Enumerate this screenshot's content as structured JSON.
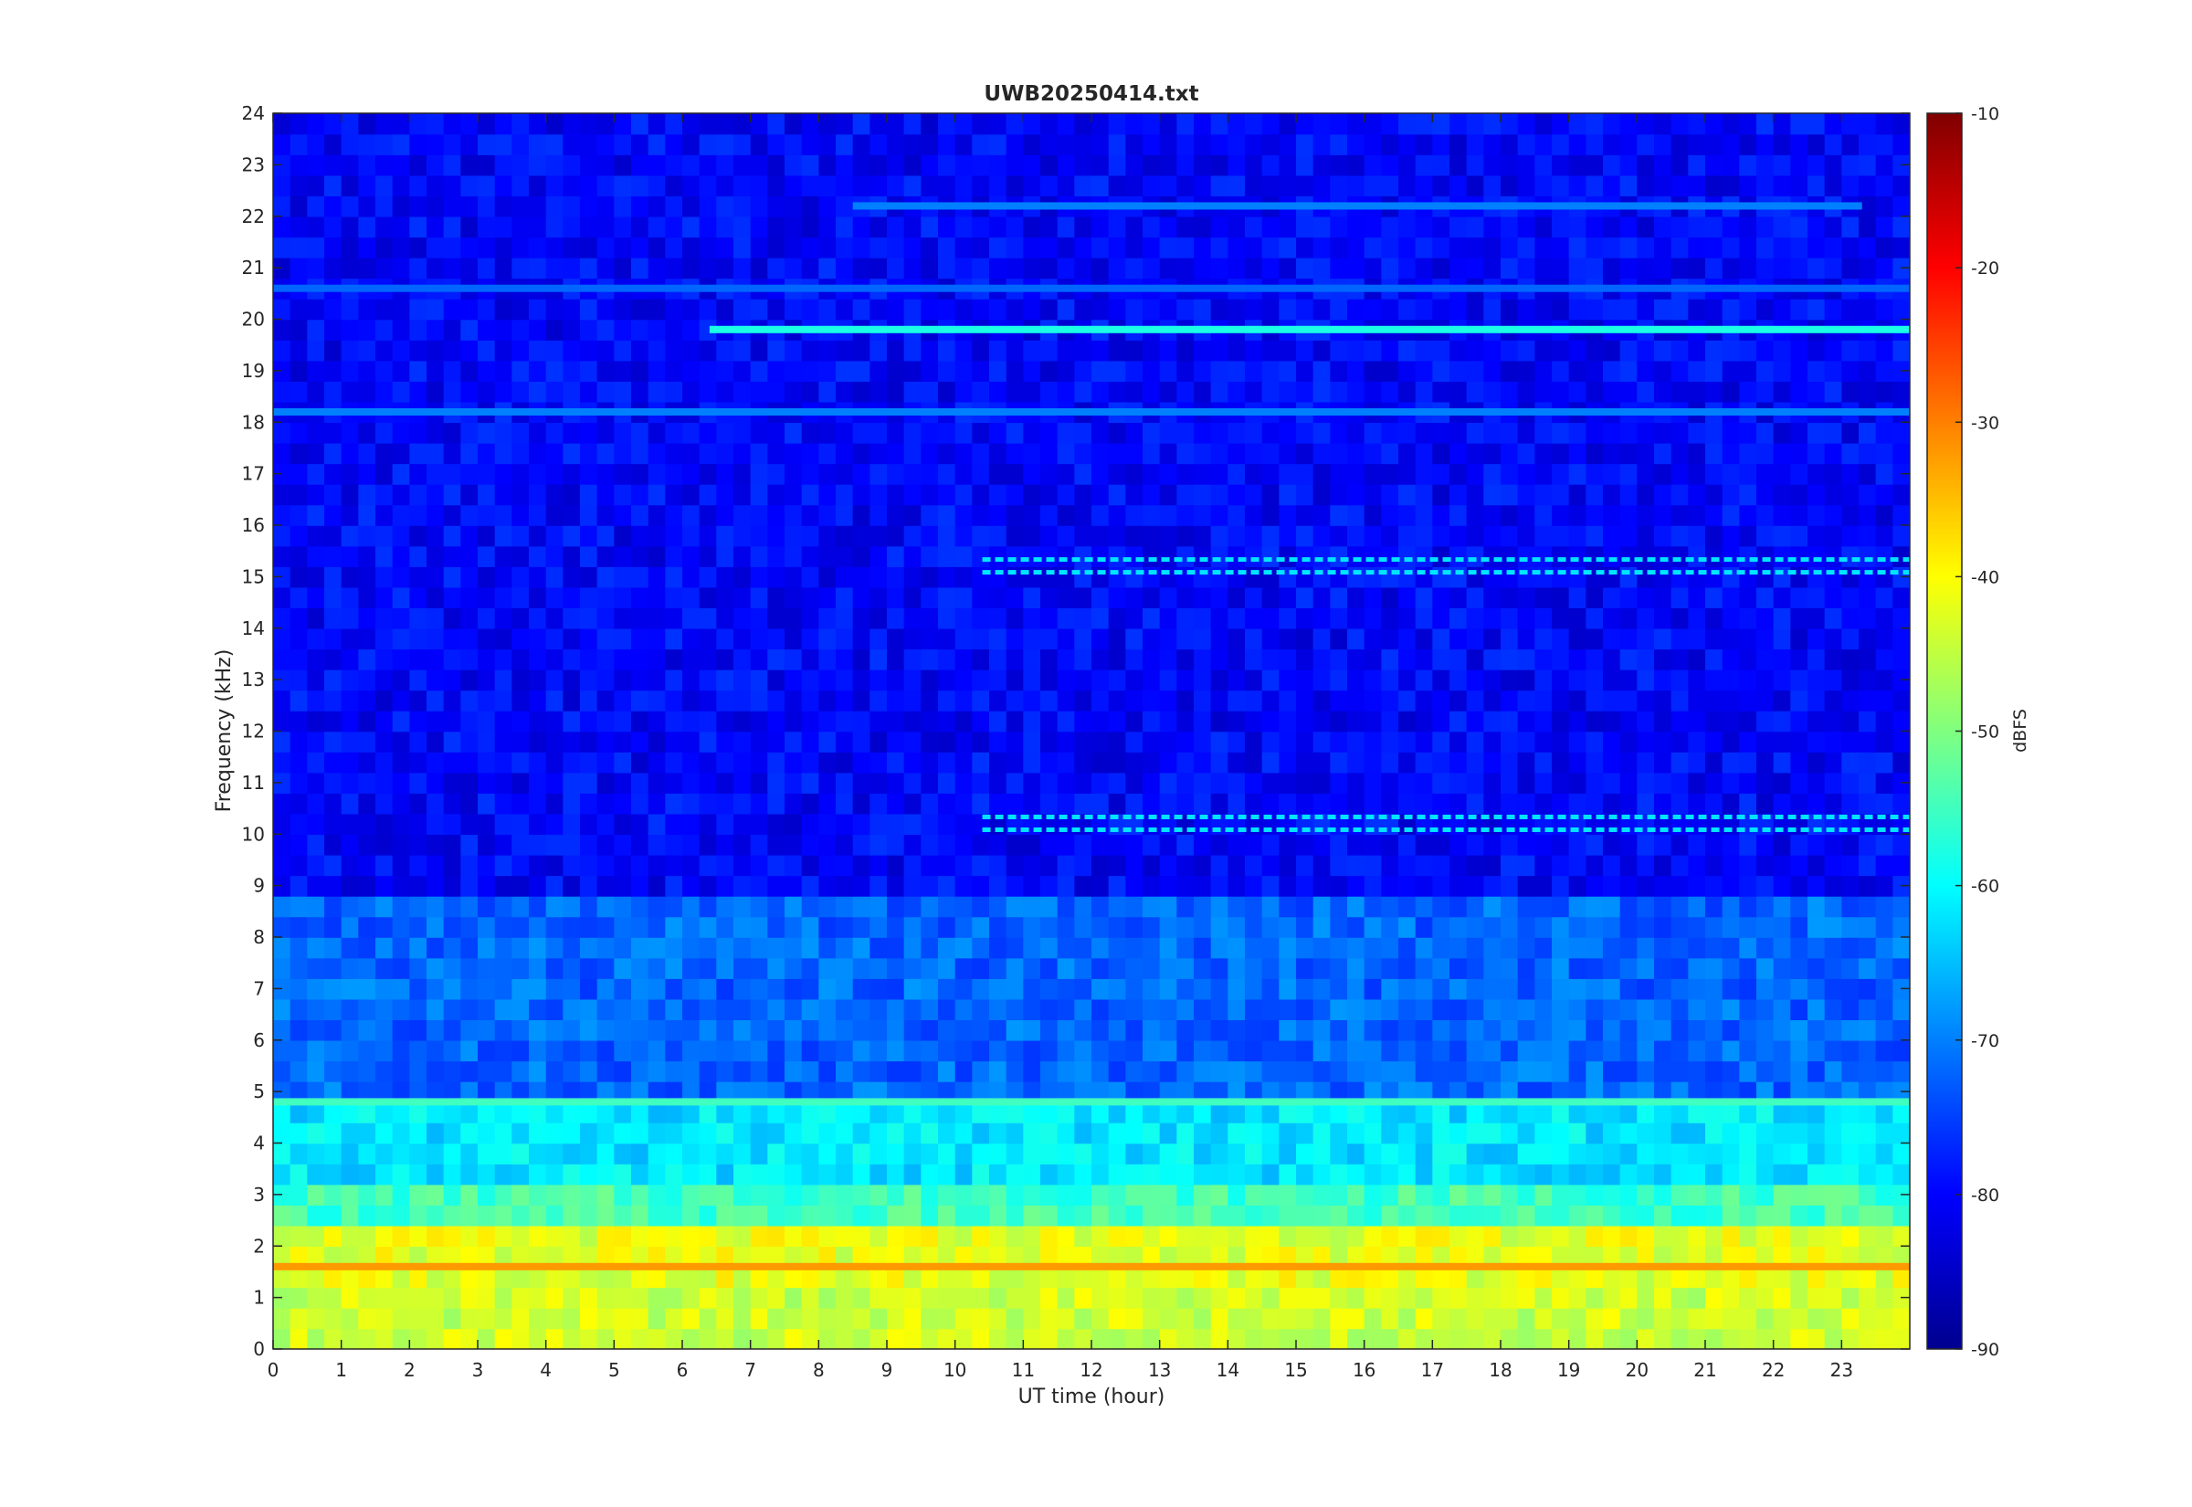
{
  "chart_data": {
    "type": "heatmap",
    "title": "UWB20250414.txt",
    "xlabel": "UT time (hour)",
    "ylabel": "Frequency (kHz)",
    "xlim": [
      0,
      24
    ],
    "ylim": [
      0,
      24
    ],
    "x_ticks": [
      "0",
      "1",
      "2",
      "3",
      "4",
      "5",
      "6",
      "7",
      "8",
      "9",
      "10",
      "11",
      "12",
      "13",
      "14",
      "15",
      "16",
      "17",
      "18",
      "19",
      "20",
      "21",
      "22",
      "23"
    ],
    "y_ticks": [
      "0",
      "1",
      "2",
      "3",
      "4",
      "5",
      "6",
      "7",
      "8",
      "9",
      "10",
      "11",
      "12",
      "13",
      "14",
      "15",
      "16",
      "17",
      "18",
      "19",
      "20",
      "21",
      "22",
      "23",
      "24"
    ],
    "colorbar": {
      "label": "dBFS",
      "clim": [
        -90,
        -10
      ],
      "ticks": [
        "-90",
        "-80",
        "-70",
        "-60",
        "-50",
        "-40",
        "-30",
        "-20",
        "-10"
      ],
      "colormap": "jet"
    },
    "background_level_dbfs": [
      {
        "freq_khz": [
          0,
          0.1
        ],
        "dbfs": -30
      },
      {
        "freq_khz": [
          0.1,
          1.2
        ],
        "dbfs": -44
      },
      {
        "freq_khz": [
          1.2,
          2.2
        ],
        "dbfs": -42
      },
      {
        "freq_khz": [
          2.2,
          3.2
        ],
        "dbfs": -55
      },
      {
        "freq_khz": [
          3.2,
          5
        ],
        "dbfs": -62
      },
      {
        "freq_khz": [
          5,
          9
        ],
        "dbfs": -72
      },
      {
        "freq_khz": [
          9,
          24
        ],
        "dbfs": -80
      }
    ],
    "features": [
      {
        "name": "",
        "kind": "band",
        "freq_khz": 19.8,
        "x_start": 6.4,
        "x_end": 24,
        "dbfs": -58
      },
      {
        "name": "",
        "kind": "band",
        "freq_khz": 18.2,
        "x_start": 0,
        "x_end": 24,
        "dbfs": -70
      },
      {
        "name": "",
        "kind": "band",
        "freq_khz": 20.6,
        "x_start": 0,
        "x_end": 24,
        "dbfs": -72
      },
      {
        "name": "",
        "kind": "band",
        "freq_khz": 22.2,
        "x_start": 8.5,
        "x_end": 23.3,
        "dbfs": -70
      },
      {
        "name": "",
        "kind": "band",
        "freq_khz": 4.8,
        "x_start": 0,
        "x_end": 24,
        "dbfs": -55
      },
      {
        "name": "",
        "kind": "band",
        "freq_khz": 1.6,
        "x_start": 0,
        "x_end": 24,
        "dbfs": -32
      },
      {
        "name": "",
        "kind": "pulses",
        "freq_khz": 15.2,
        "x_start": 10.4,
        "x_end": 24,
        "dbfs": -62
      },
      {
        "name": "",
        "kind": "pulses",
        "freq_khz": 10.2,
        "x_start": 10.4,
        "x_end": 24,
        "dbfs": -62
      }
    ]
  }
}
